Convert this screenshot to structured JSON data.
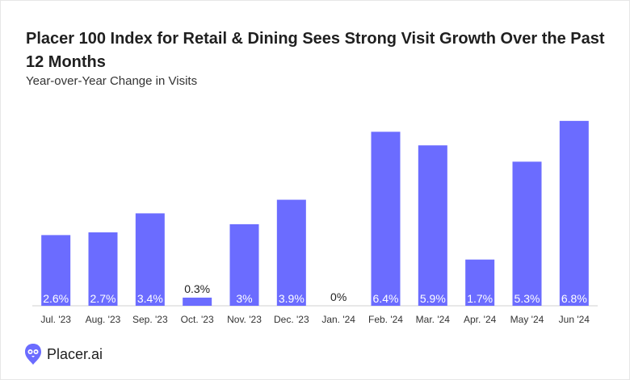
{
  "chart_data": {
    "type": "bar",
    "title": "Placer 100 Index for Retail & Dining Sees Strong Visit Growth Over the Past 12 Months",
    "subtitle": "Year-over-Year Change in Visits",
    "categories": [
      "Jul. '23",
      "Aug. '23",
      "Sep. '23",
      "Oct. '23",
      "Nov. '23",
      "Dec. '23",
      "Jan. '24",
      "Feb. '24",
      "Mar. '24",
      "Apr. '24",
      "May '24",
      "Jun '24"
    ],
    "values": [
      2.6,
      2.7,
      3.4,
      0.3,
      3.0,
      3.9,
      0.0,
      6.4,
      5.9,
      1.7,
      5.3,
      6.8
    ],
    "labels": [
      "2.6%",
      "2.7%",
      "3.4%",
      "0.3%",
      "3%",
      "3.9%",
      "0%",
      "6.4%",
      "5.9%",
      "1.7%",
      "5.3%",
      "6.8%"
    ],
    "xlabel": "",
    "ylabel": "",
    "ylim": [
      0,
      7.3
    ],
    "grid": false,
    "colors": {
      "bar": "#6b6cff",
      "label_inside": "#ffffff",
      "label_outside": "#1f1f1f",
      "axis": "#d0d0d0"
    }
  },
  "brand": {
    "name": "Placer.ai"
  }
}
